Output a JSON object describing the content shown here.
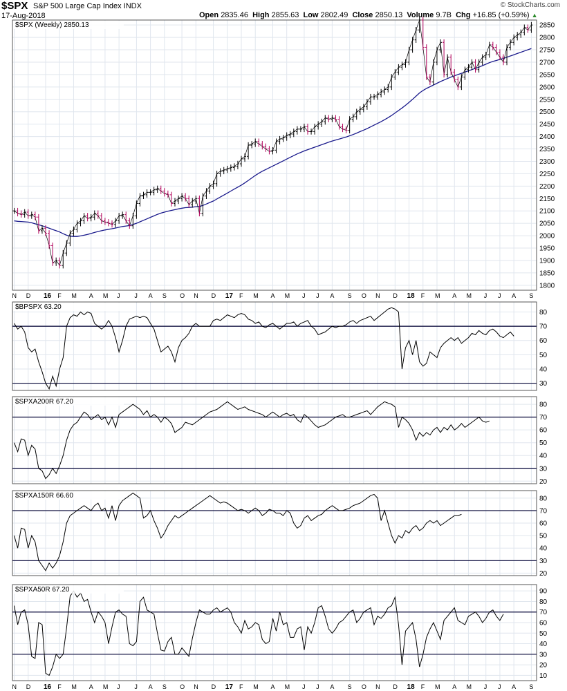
{
  "header": {
    "symbol": "$SPX",
    "name": "S&P 500 Large Cap Index INDX",
    "date": "17-Aug-2018",
    "logo": "© StockCharts.com",
    "open_label": "Open",
    "open": "2835.46",
    "high_label": "High",
    "high": "2855.63",
    "low_label": "Low",
    "low": "2802.49",
    "close_label": "Close",
    "close": "2850.13",
    "volume_label": "Volume",
    "volume": "9.7B",
    "chg_label": "Chg",
    "chg": "+16.85 (+0.59%)",
    "chg_icon": "up-triangle-icon"
  },
  "colors": {
    "price_bar": "#000000",
    "down_bar": "#b0005a",
    "ma_line": "#1a1a8c",
    "indicator_line": "#000000",
    "ref_line": "#000033",
    "grid": "#e0e6ee"
  },
  "x_axis": {
    "months": [
      {
        "label": "N",
        "i": 0
      },
      {
        "label": "D",
        "i": 4
      },
      {
        "label": "16",
        "i": 9,
        "year": true
      },
      {
        "label": "F",
        "i": 13
      },
      {
        "label": "M",
        "i": 17
      },
      {
        "label": "A",
        "i": 22
      },
      {
        "label": "M",
        "i": 26
      },
      {
        "label": "J",
        "i": 30
      },
      {
        "label": "J",
        "i": 35
      },
      {
        "label": "A",
        "i": 39
      },
      {
        "label": "S",
        "i": 43
      },
      {
        "label": "O",
        "i": 48
      },
      {
        "label": "N",
        "i": 52
      },
      {
        "label": "D",
        "i": 57
      },
      {
        "label": "17",
        "i": 61,
        "year": true
      },
      {
        "label": "F",
        "i": 65
      },
      {
        "label": "M",
        "i": 69
      },
      {
        "label": "A",
        "i": 74
      },
      {
        "label": "M",
        "i": 78
      },
      {
        "label": "J",
        "i": 83
      },
      {
        "label": "J",
        "i": 87
      },
      {
        "label": "A",
        "i": 91
      },
      {
        "label": "S",
        "i": 96
      },
      {
        "label": "O",
        "i": 100
      },
      {
        "label": "N",
        "i": 104
      },
      {
        "label": "D",
        "i": 109
      },
      {
        "label": "18",
        "i": 113,
        "year": true
      },
      {
        "label": "F",
        "i": 117
      },
      {
        "label": "M",
        "i": 121
      },
      {
        "label": "A",
        "i": 126
      },
      {
        "label": "M",
        "i": 130
      },
      {
        "label": "J",
        "i": 135
      },
      {
        "label": "J",
        "i": 139
      },
      {
        "label": "A",
        "i": 143
      },
      {
        "label": "S",
        "i": 148
      }
    ]
  },
  "chart_data": [
    {
      "type": "ohlc",
      "title": "$SPX (Weekly) 2850.13",
      "ylim": [
        1780,
        2870
      ],
      "yticks": [
        1800,
        1850,
        1900,
        1950,
        2000,
        2050,
        2100,
        2150,
        2200,
        2250,
        2300,
        2350,
        2400,
        2450,
        2500,
        2550,
        2600,
        2650,
        2700,
        2750,
        2800,
        2850
      ],
      "close": [
        2100,
        2090,
        2085,
        2095,
        2080,
        2085,
        2075,
        2020,
        2030,
        2010,
        1960,
        1890,
        1900,
        1880,
        1930,
        1970,
        2010,
        2025,
        2050,
        2060,
        2080,
        2070,
        2075,
        2090,
        2080,
        2060,
        2055,
        2050,
        2045,
        2060,
        2080,
        2085,
        2060,
        2040,
        2080,
        2130,
        2160,
        2165,
        2175,
        2175,
        2185,
        2190,
        2180,
        2170,
        2165,
        2130,
        2140,
        2150,
        2160,
        2150,
        2125,
        2140,
        2150,
        2090,
        2160,
        2180,
        2200,
        2210,
        2250,
        2260,
        2265,
        2270,
        2275,
        2280,
        2290,
        2310,
        2320,
        2365,
        2370,
        2380,
        2370,
        2360,
        2350,
        2340,
        2345,
        2380,
        2390,
        2395,
        2405,
        2410,
        2420,
        2430,
        2430,
        2440,
        2420,
        2420,
        2440,
        2450,
        2460,
        2475,
        2470,
        2475,
        2470,
        2440,
        2430,
        2425,
        2470,
        2480,
        2500,
        2510,
        2520,
        2540,
        2560,
        2560,
        2570,
        2580,
        2590,
        2600,
        2640,
        2660,
        2680,
        2690,
        2700,
        2750,
        2790,
        2830,
        2870,
        2760,
        2640,
        2620,
        2700,
        2750,
        2780,
        2650,
        2720,
        2660,
        2630,
        2600,
        2640,
        2670,
        2680,
        2700,
        2670,
        2700,
        2720,
        2730,
        2770,
        2760,
        2740,
        2720,
        2700,
        2760,
        2780,
        2800,
        2810,
        2820,
        2840,
        2830,
        2850
      ],
      "ma": [
        2060,
        2058,
        2057,
        2056,
        2055,
        2052,
        2048,
        2044,
        2040,
        2035,
        2030,
        2025,
        2020,
        2015,
        2008,
        2002,
        1998,
        1997,
        1997,
        1999,
        2002,
        2005,
        2009,
        2013,
        2017,
        2020,
        2023,
        2026,
        2028,
        2031,
        2034,
        2037,
        2039,
        2041,
        2045,
        2050,
        2056,
        2062,
        2068,
        2074,
        2080,
        2086,
        2091,
        2095,
        2099,
        2102,
        2105,
        2108,
        2111,
        2113,
        2114,
        2115,
        2117,
        2118,
        2122,
        2128,
        2134,
        2140,
        2148,
        2156,
        2164,
        2172,
        2180,
        2188,
        2196,
        2204,
        2213,
        2223,
        2233,
        2243,
        2252,
        2260,
        2267,
        2274,
        2281,
        2288,
        2295,
        2302,
        2309,
        2316,
        2323,
        2330,
        2336,
        2342,
        2347,
        2352,
        2357,
        2362,
        2367,
        2372,
        2377,
        2382,
        2386,
        2390,
        2394,
        2398,
        2403,
        2408,
        2414,
        2420,
        2426,
        2432,
        2439,
        2446,
        2453,
        2460,
        2468,
        2476,
        2485,
        2495,
        2505,
        2515,
        2526,
        2538,
        2550,
        2563,
        2576,
        2586,
        2594,
        2601,
        2608,
        2615,
        2622,
        2628,
        2634,
        2640,
        2645,
        2650,
        2655,
        2660,
        2665,
        2670,
        2675,
        2680,
        2686,
        2692,
        2698,
        2703,
        2707,
        2711,
        2715,
        2720,
        2725,
        2730,
        2735,
        2740,
        2745,
        2750,
        2755
      ]
    },
    {
      "type": "line",
      "title": "$BPSPX 63.20",
      "ylim": [
        25,
        87
      ],
      "yticks": [
        30,
        40,
        50,
        60,
        70,
        80
      ],
      "ref_lines": [
        70,
        30
      ],
      "values": [
        72,
        68,
        70,
        66,
        55,
        52,
        54,
        45,
        38,
        30,
        26,
        35,
        28,
        40,
        48,
        70,
        76,
        78,
        77,
        80,
        78,
        80,
        79,
        72,
        70,
        68,
        70,
        74,
        70,
        62,
        52,
        60,
        70,
        75,
        76,
        77,
        76,
        77,
        76,
        72,
        68,
        60,
        52,
        54,
        56,
        52,
        45,
        55,
        60,
        62,
        65,
        70,
        72,
        70,
        70,
        70,
        70,
        74,
        75,
        74,
        76,
        78,
        77,
        76,
        78,
        79,
        78,
        75,
        74,
        72,
        73,
        70,
        69,
        71,
        72,
        70,
        68,
        70,
        72,
        72,
        73,
        70,
        72,
        73,
        74,
        70,
        68,
        64,
        65,
        66,
        68,
        70,
        69,
        70,
        70,
        71,
        73,
        74,
        72,
        74,
        75,
        76,
        77,
        74,
        76,
        78,
        80,
        82,
        83,
        82,
        80,
        40,
        55,
        60,
        50,
        60,
        45,
        42,
        44,
        52,
        50,
        48,
        55,
        58,
        60,
        62,
        60,
        62,
        58,
        60,
        62,
        65,
        64,
        67,
        65,
        64,
        67,
        68,
        66,
        63,
        62,
        64,
        66,
        63
      ]
    },
    {
      "type": "line",
      "title": "$SPXA200R 67.20",
      "ylim": [
        18,
        86
      ],
      "yticks": [
        20,
        30,
        40,
        50,
        60,
        70,
        80
      ],
      "ref_lines": [
        70,
        30
      ],
      "values": [
        50,
        43,
        53,
        52,
        40,
        48,
        45,
        30,
        28,
        22,
        25,
        30,
        26,
        32,
        40,
        52,
        60,
        64,
        66,
        70,
        74,
        72,
        68,
        70,
        72,
        68,
        70,
        64,
        70,
        62,
        72,
        74,
        76,
        78,
        80,
        78,
        76,
        72,
        75,
        70,
        72,
        70,
        66,
        70,
        68,
        65,
        58,
        60,
        62,
        66,
        65,
        64,
        66,
        68,
        70,
        72,
        74,
        75,
        76,
        78,
        80,
        82,
        80,
        78,
        76,
        77,
        78,
        76,
        75,
        74,
        73,
        72,
        70,
        72,
        74,
        72,
        70,
        72,
        73,
        71,
        72,
        68,
        66,
        72,
        70,
        67,
        64,
        62,
        63,
        64,
        66,
        68,
        70,
        71,
        72,
        70,
        70,
        71,
        72,
        73,
        74,
        75,
        72,
        75,
        78,
        80,
        82,
        81,
        80,
        78,
        62,
        70,
        68,
        65,
        60,
        52,
        58,
        55,
        58,
        56,
        60,
        62,
        58,
        62,
        60,
        64,
        60,
        62,
        65,
        62,
        64,
        66,
        68,
        70,
        67,
        66,
        67
      ]
    },
    {
      "type": "line",
      "title": "$SPXA150R 66.60",
      "ylim": [
        18,
        86
      ],
      "yticks": [
        20,
        30,
        40,
        50,
        60,
        70,
        80
      ],
      "ref_lines": [
        70,
        30
      ],
      "values": [
        50,
        40,
        56,
        55,
        40,
        50,
        45,
        30,
        26,
        22,
        28,
        24,
        28,
        34,
        45,
        60,
        66,
        68,
        70,
        72,
        74,
        72,
        70,
        74,
        76,
        70,
        72,
        64,
        74,
        62,
        74,
        78,
        80,
        82,
        84,
        82,
        80,
        64,
        66,
        70,
        62,
        56,
        48,
        52,
        58,
        62,
        66,
        64,
        66,
        68,
        70,
        72,
        74,
        76,
        78,
        80,
        82,
        80,
        78,
        76,
        77,
        76,
        74,
        72,
        70,
        71,
        70,
        68,
        70,
        72,
        70,
        66,
        68,
        71,
        70,
        68,
        68,
        66,
        70,
        68,
        60,
        56,
        58,
        64,
        66,
        62,
        64,
        66,
        67,
        70,
        72,
        74,
        72,
        70,
        70,
        71,
        72,
        74,
        75,
        76,
        78,
        80,
        82,
        83,
        80,
        62,
        70,
        60,
        50,
        44,
        50,
        48,
        54,
        52,
        56,
        58,
        54,
        56,
        60,
        62,
        60,
        62,
        58,
        60,
        62,
        64,
        66,
        66,
        67
      ]
    },
    {
      "type": "line",
      "title": "$SPXA50R 67.20",
      "ylim": [
        5,
        96
      ],
      "yticks": [
        10,
        20,
        30,
        40,
        50,
        60,
        70,
        80,
        90
      ],
      "ref_lines": [
        70,
        30
      ],
      "values": [
        76,
        58,
        70,
        72,
        58,
        28,
        26,
        60,
        58,
        12,
        10,
        18,
        30,
        26,
        30,
        55,
        85,
        90,
        84,
        88,
        80,
        82,
        70,
        60,
        70,
        66,
        60,
        40,
        56,
        70,
        72,
        68,
        66,
        40,
        38,
        42,
        80,
        84,
        72,
        70,
        68,
        50,
        34,
        33,
        42,
        46,
        30,
        30,
        36,
        32,
        28,
        45,
        60,
        72,
        70,
        68,
        68,
        72,
        74,
        70,
        72,
        74,
        70,
        60,
        56,
        50,
        62,
        54,
        56,
        60,
        58,
        44,
        40,
        42,
        64,
        52,
        70,
        58,
        60,
        46,
        46,
        54,
        56,
        34,
        56,
        50,
        60,
        74,
        76,
        66,
        54,
        50,
        54,
        60,
        62,
        66,
        70,
        72,
        60,
        64,
        70,
        72,
        74,
        58,
        66,
        64,
        68,
        74,
        76,
        84,
        58,
        20,
        52,
        56,
        60,
        44,
        18,
        30,
        46,
        54,
        60,
        52,
        44,
        62,
        66,
        70,
        74,
        62,
        60,
        58,
        66,
        68,
        70,
        66,
        60,
        64,
        70,
        72,
        66,
        62,
        68
      ]
    }
  ]
}
